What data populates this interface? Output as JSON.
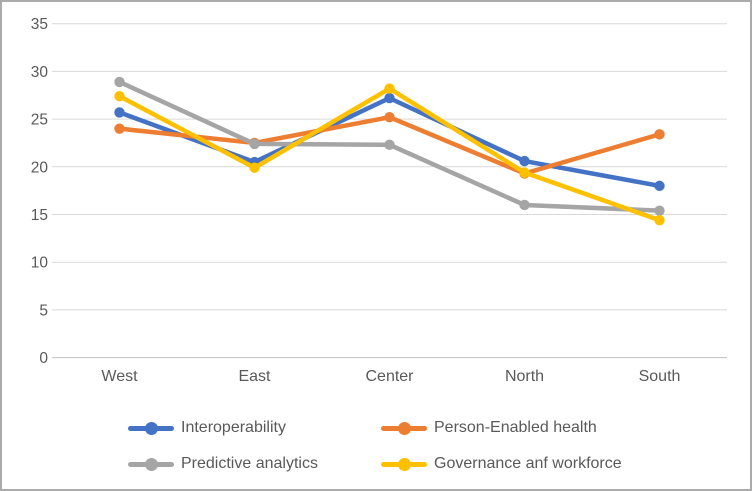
{
  "chart_data": {
    "type": "line",
    "title": "",
    "xlabel": "",
    "ylabel": "",
    "categories": [
      "West",
      "East",
      "Center",
      "North",
      "South"
    ],
    "series": [
      {
        "name": "Interoperability",
        "color": "#4472C4",
        "values": [
          25.7,
          20.5,
          27.2,
          20.6,
          18.0
        ]
      },
      {
        "name": "Person-Enabled health",
        "color": "#ED7D31",
        "values": [
          24.0,
          22.5,
          25.2,
          19.3,
          23.4
        ]
      },
      {
        "name": "Predictive analytics",
        "color": "#A5A5A5",
        "values": [
          28.9,
          22.4,
          22.3,
          16.0,
          15.4
        ]
      },
      {
        "name": "Governance anf workforce",
        "color": "#FFC000",
        "values": [
          27.4,
          19.9,
          28.2,
          19.4,
          14.4
        ]
      }
    ],
    "y_ticks": [
      0,
      5,
      10,
      15,
      20,
      25,
      30,
      35
    ],
    "ylim": [
      0,
      35
    ],
    "grid": true,
    "legend_position": "bottom",
    "marker": "circle",
    "colors": {
      "gridline": "#D9D9D9",
      "axis_line": "#BFBFBF",
      "tick_label": "#595959",
      "frame_border": "#ABABAB",
      "background": "#FFFFFF"
    }
  }
}
